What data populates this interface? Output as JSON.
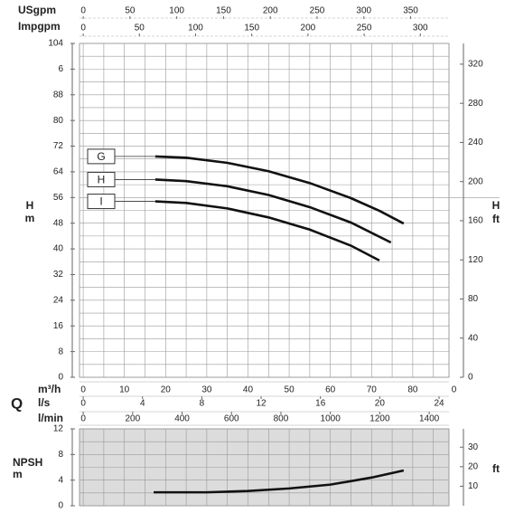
{
  "chart_data": [
    {
      "type": "line",
      "y_label": "H",
      "y_unit": "m",
      "y2_label": "H",
      "y2_unit": "ft",
      "x_symbol": "Q",
      "x_label": "m³/h",
      "xlim": [
        -0.9,
        88.8
      ],
      "xticks": [
        0,
        10,
        20,
        30,
        40,
        50,
        60,
        70,
        80,
        {
          "value": 90,
          "label": "0"
        }
      ],
      "ylim": [
        0,
        104
      ],
      "yticks": [
        0,
        8,
        16,
        24,
        32,
        40,
        48,
        56,
        64,
        72,
        80,
        88,
        {
          "value": 96,
          "label": "6"
        },
        104
      ],
      "y2lim": [
        0,
        341.2
      ],
      "y2ticks": [
        0,
        40,
        80,
        120,
        160,
        200,
        240,
        280,
        320
      ],
      "grid": true,
      "x_axes": [
        {
          "label": "USgpm",
          "position": "top",
          "lim": [
            -3.96,
            391
          ],
          "ticks": [
            0,
            50,
            100,
            150,
            200,
            250,
            300,
            350
          ]
        },
        {
          "label": "Impgpm",
          "position": "top",
          "lim": [
            -3.3,
            325.5
          ],
          "ticks": [
            0,
            50,
            100,
            150,
            200,
            250,
            300
          ]
        },
        {
          "label": "l/s",
          "position": "bottom",
          "lim": [
            -0.25,
            24.67
          ],
          "ticks": [
            0,
            4,
            8,
            12,
            16,
            20,
            24
          ]
        },
        {
          "label": "l/min",
          "position": "bottom",
          "lim": [
            -15,
            1480
          ],
          "ticks": [
            0,
            200,
            400,
            600,
            800,
            1000,
            1200,
            1400
          ]
        }
      ],
      "series": [
        {
          "name": "G",
          "color": "#111111",
          "x": [
            17.5,
            25,
            35,
            45,
            55,
            65,
            72,
            77.8
          ],
          "values": [
            68.8,
            68.4,
            66.8,
            64.2,
            60.5,
            55.8,
            51.8,
            47.9
          ]
        },
        {
          "name": "H",
          "color": "#111111",
          "x": [
            17.5,
            25,
            35,
            45,
            55,
            65,
            74.7
          ],
          "values": [
            61.6,
            61.1,
            59.5,
            56.8,
            53,
            48.2,
            42
          ]
        },
        {
          "name": "I",
          "color": "#111111",
          "x": [
            17.5,
            25,
            35,
            45,
            55,
            65,
            71.9
          ],
          "values": [
            54.8,
            54.3,
            52.6,
            49.8,
            46,
            41,
            36.4
          ]
        }
      ]
    },
    {
      "type": "line",
      "y_label": "NPSH",
      "y_unit": "m",
      "y2_unit": "ft",
      "xlim": [
        -0.9,
        88.8
      ],
      "ylim": [
        0,
        12
      ],
      "yticks": [
        0,
        4,
        8,
        12
      ],
      "y2lim": [
        0,
        39.37
      ],
      "y2ticks": [
        10,
        20,
        30
      ],
      "grid": true,
      "background": "#dcdcdc",
      "series": [
        {
          "color": "#111111",
          "x": [
            17.1,
            30,
            40,
            50,
            60,
            70,
            77.8
          ],
          "values": [
            2.1,
            2.1,
            2.3,
            2.7,
            3.3,
            4.4,
            5.5
          ]
        }
      ]
    }
  ]
}
